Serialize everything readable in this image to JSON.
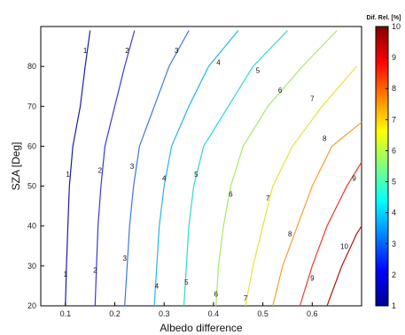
{
  "chart_data": {
    "type": "contour",
    "xlabel": "Albedo difference",
    "ylabel": "SZA [Deg]",
    "xlim": [
      0.05,
      0.7
    ],
    "ylim": [
      20,
      90
    ],
    "xticks": [
      "0.1",
      "0.2",
      "0.3",
      "0.4",
      "0.5",
      "0.6"
    ],
    "yticks": [
      "20",
      "30",
      "40",
      "50",
      "60",
      "70",
      "80"
    ],
    "colorbar": {
      "title": "Dif. Rel. [%]",
      "range": [
        1,
        10
      ],
      "ticks": [
        "1",
        "2",
        "3",
        "4",
        "5",
        "6",
        "7",
        "8",
        "9",
        "10"
      ],
      "colors": [
        "#00008f",
        "#0000ff",
        "#0080ff",
        "#00ffff",
        "#80ff80",
        "#ffff00",
        "#ff8000",
        "#ff0000",
        "#800000"
      ]
    },
    "contours": [
      {
        "level": 1,
        "label": "1",
        "color": "#1d1d9f",
        "points": [
          [
            0.1,
            20
          ],
          [
            0.102,
            30
          ],
          [
            0.105,
            40
          ],
          [
            0.108,
            50
          ],
          [
            0.115,
            60
          ],
          [
            0.13,
            70
          ],
          [
            0.14,
            80
          ],
          [
            0.15,
            89
          ]
        ]
      },
      {
        "level": 2,
        "label": "2",
        "color": "#3a3ad8",
        "points": [
          [
            0.16,
            20
          ],
          [
            0.163,
            30
          ],
          [
            0.166,
            40
          ],
          [
            0.172,
            50
          ],
          [
            0.18,
            60
          ],
          [
            0.2,
            70
          ],
          [
            0.22,
            80
          ],
          [
            0.24,
            89
          ]
        ]
      },
      {
        "level": 3,
        "label": "3",
        "color": "#3b78e0",
        "points": [
          [
            0.22,
            20
          ],
          [
            0.225,
            30
          ],
          [
            0.23,
            40
          ],
          [
            0.238,
            50
          ],
          [
            0.25,
            60
          ],
          [
            0.28,
            70
          ],
          [
            0.31,
            80
          ],
          [
            0.35,
            89
          ]
        ]
      },
      {
        "level": 4,
        "label": "4",
        "color": "#27b4e6",
        "points": [
          [
            0.28,
            20
          ],
          [
            0.285,
            30
          ],
          [
            0.29,
            40
          ],
          [
            0.3,
            50
          ],
          [
            0.315,
            60
          ],
          [
            0.35,
            70
          ],
          [
            0.39,
            80
          ],
          [
            0.45,
            89
          ]
        ]
      },
      {
        "level": 5,
        "label": "5",
        "color": "#2ed8d0",
        "points": [
          [
            0.34,
            20
          ],
          [
            0.345,
            30
          ],
          [
            0.35,
            40
          ],
          [
            0.36,
            50
          ],
          [
            0.38,
            60
          ],
          [
            0.43,
            70
          ],
          [
            0.48,
            80
          ],
          [
            0.55,
            89
          ]
        ]
      },
      {
        "level": 6,
        "label": "6",
        "color": "#a8e86a",
        "points": [
          [
            0.405,
            20
          ],
          [
            0.41,
            30
          ],
          [
            0.42,
            40
          ],
          [
            0.435,
            50
          ],
          [
            0.46,
            60
          ],
          [
            0.51,
            70
          ],
          [
            0.58,
            80
          ],
          [
            0.65,
            89
          ]
        ]
      },
      {
        "level": 7,
        "label": "7",
        "color": "#e8e040",
        "points": [
          [
            0.465,
            20
          ],
          [
            0.48,
            30
          ],
          [
            0.5,
            40
          ],
          [
            0.52,
            50
          ],
          [
            0.56,
            60
          ],
          [
            0.62,
            70
          ],
          [
            0.69,
            80
          ]
        ]
      },
      {
        "level": 8,
        "label": "8",
        "color": "#f0a030",
        "points": [
          [
            0.52,
            20
          ],
          [
            0.54,
            30
          ],
          [
            0.57,
            40
          ],
          [
            0.6,
            50
          ],
          [
            0.64,
            60
          ],
          [
            0.7,
            66
          ]
        ]
      },
      {
        "level": 9,
        "label": "9",
        "color": "#e83a2a",
        "points": [
          [
            0.575,
            20
          ],
          [
            0.6,
            30
          ],
          [
            0.63,
            40
          ],
          [
            0.67,
            50
          ],
          [
            0.7,
            56
          ]
        ]
      },
      {
        "level": 10,
        "label": "10",
        "color": "#b01818",
        "points": [
          [
            0.63,
            20
          ],
          [
            0.66,
            30
          ],
          [
            0.69,
            38
          ],
          [
            0.7,
            40
          ]
        ]
      }
    ],
    "labels": [
      {
        "text": "1",
        "x": 0.1,
        "y": 28
      },
      {
        "text": "1",
        "x": 0.105,
        "y": 53
      },
      {
        "text": "1",
        "x": 0.14,
        "y": 84
      },
      {
        "text": "2",
        "x": 0.16,
        "y": 29
      },
      {
        "text": "2",
        "x": 0.17,
        "y": 54
      },
      {
        "text": "2",
        "x": 0.225,
        "y": 84
      },
      {
        "text": "3",
        "x": 0.22,
        "y": 32
      },
      {
        "text": "3",
        "x": 0.235,
        "y": 55
      },
      {
        "text": "3",
        "x": 0.325,
        "y": 84
      },
      {
        "text": "4",
        "x": 0.285,
        "y": 25
      },
      {
        "text": "4",
        "x": 0.3,
        "y": 52
      },
      {
        "text": "4",
        "x": 0.41,
        "y": 81
      },
      {
        "text": "5",
        "x": 0.345,
        "y": 26
      },
      {
        "text": "5",
        "x": 0.365,
        "y": 53
      },
      {
        "text": "5",
        "x": 0.49,
        "y": 79
      },
      {
        "text": "6",
        "x": 0.405,
        "y": 23
      },
      {
        "text": "6",
        "x": 0.435,
        "y": 48
      },
      {
        "text": "6",
        "x": 0.535,
        "y": 74
      },
      {
        "text": "7",
        "x": 0.465,
        "y": 22
      },
      {
        "text": "7",
        "x": 0.51,
        "y": 47
      },
      {
        "text": "7",
        "x": 0.6,
        "y": 72
      },
      {
        "text": "8",
        "x": 0.555,
        "y": 38
      },
      {
        "text": "8",
        "x": 0.625,
        "y": 62
      },
      {
        "text": "9",
        "x": 0.6,
        "y": 27
      },
      {
        "text": "9",
        "x": 0.685,
        "y": 52
      },
      {
        "text": "10",
        "x": 0.665,
        "y": 35
      }
    ]
  }
}
